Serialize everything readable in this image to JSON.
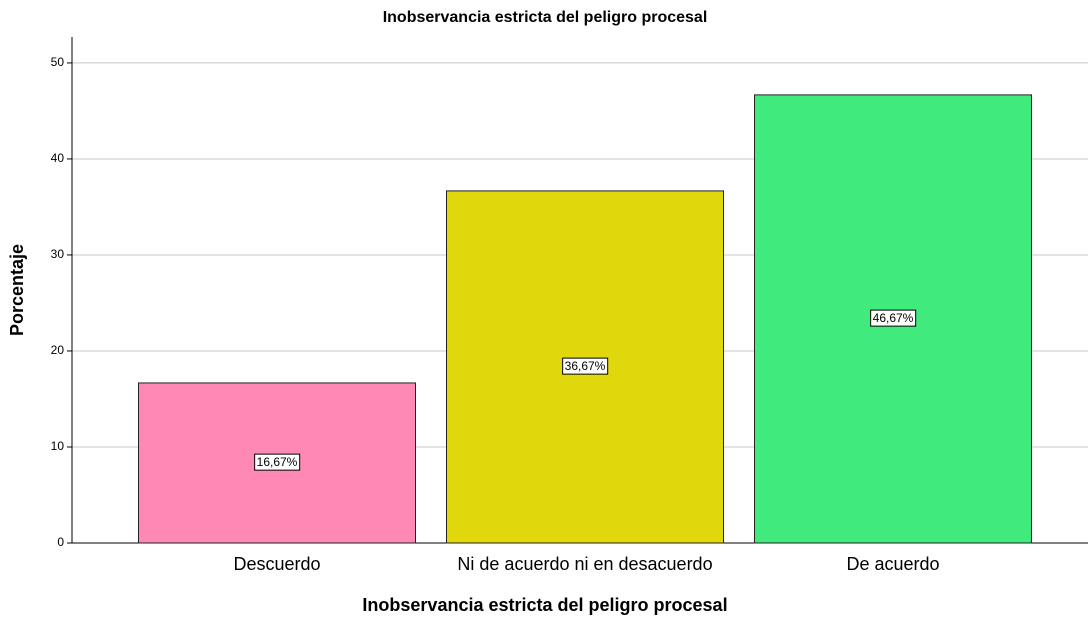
{
  "chart_data": {
    "type": "bar",
    "title": "Inobservancia estricta del peligro procesal",
    "x_label": "Inobservancia estricta del peligro procesal",
    "y_label": "Porcentaje",
    "categories": [
      "Descuerdo",
      "Ni de acuerdo ni en desacuerdo",
      "De acuerdo"
    ],
    "values": [
      16.67,
      36.67,
      46.67
    ],
    "value_labels": [
      "16,67%",
      "36,67%",
      "46,67%"
    ],
    "colors": [
      "#ff88b5",
      "#e0d70c",
      "#40ea7c"
    ],
    "ylim": [
      0,
      52.7
    ],
    "yticks": [
      0,
      10,
      20,
      30,
      40,
      50
    ],
    "grid": true
  }
}
